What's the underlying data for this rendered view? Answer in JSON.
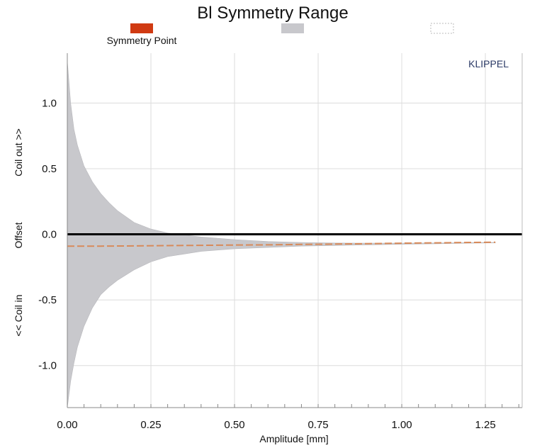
{
  "chart_data": {
    "type": "area",
    "title": "Bl Symmetry Range",
    "watermark": "KLIPPEL",
    "xlabel": "Amplitude [mm]",
    "ylabel_parts": [
      "<< Coil in",
      "Offset",
      "Coil out >>"
    ],
    "xlim": [
      0.0,
      1.36
    ],
    "ylim": [
      -1.32,
      1.38
    ],
    "x_ticks": [
      0.0,
      0.25,
      0.5,
      0.75,
      1.0,
      1.25
    ],
    "x_tick_labels": [
      "0.00",
      "0.25",
      "0.50",
      "0.75",
      "1.00",
      "1.25"
    ],
    "y_ticks": [
      1.0,
      0.5,
      0.0,
      -0.5,
      -1.0
    ],
    "y_tick_labels": [
      "1.0",
      "0.5",
      "0.0",
      "-0.5",
      "-1.0"
    ],
    "grid": true,
    "legend": [
      {
        "label": "Symmetry Point",
        "color": "#d03a12",
        "style": "solid"
      },
      {
        "label": "",
        "color": "#c8c8cc",
        "style": "solid"
      },
      {
        "label": "",
        "color": "#bbbbbb",
        "style": "dotted"
      }
    ],
    "series": [
      {
        "name": "Symmetry Point",
        "kind": "line",
        "color": "#d88a5a",
        "x": [
          0.0,
          0.1,
          0.2,
          0.3,
          0.4,
          0.5,
          0.6,
          0.7,
          0.8,
          0.9,
          1.0,
          1.1,
          1.2,
          1.28
        ],
        "y": [
          -0.09,
          -0.09,
          -0.088,
          -0.086,
          -0.084,
          -0.082,
          -0.08,
          -0.077,
          -0.074,
          -0.071,
          -0.068,
          -0.065,
          -0.062,
          -0.06
        ]
      },
      {
        "kind": "area",
        "color": "#c8c8cc",
        "x": [
          0.0,
          0.01,
          0.02,
          0.03,
          0.05,
          0.075,
          0.1,
          0.125,
          0.15,
          0.2,
          0.25,
          0.3,
          0.35,
          0.4,
          0.5,
          0.6,
          0.7,
          0.8,
          0.9,
          1.0,
          1.1,
          1.2,
          1.28
        ],
        "y_upper": [
          1.32,
          1.0,
          0.8,
          0.68,
          0.52,
          0.4,
          0.31,
          0.24,
          0.18,
          0.09,
          0.04,
          0.01,
          -0.005,
          -0.02,
          -0.04,
          -0.055,
          -0.062,
          -0.066,
          -0.068,
          -0.068,
          -0.066,
          -0.064,
          -0.062
        ],
        "y_lower": [
          -1.32,
          -1.12,
          -0.98,
          -0.86,
          -0.7,
          -0.56,
          -0.46,
          -0.4,
          -0.35,
          -0.27,
          -0.21,
          -0.17,
          -0.15,
          -0.13,
          -0.11,
          -0.1,
          -0.09,
          -0.085,
          -0.08,
          -0.076,
          -0.072,
          -0.068,
          -0.065
        ]
      }
    ],
    "zero_line": {
      "y": 0.0,
      "color": "#000000"
    }
  }
}
